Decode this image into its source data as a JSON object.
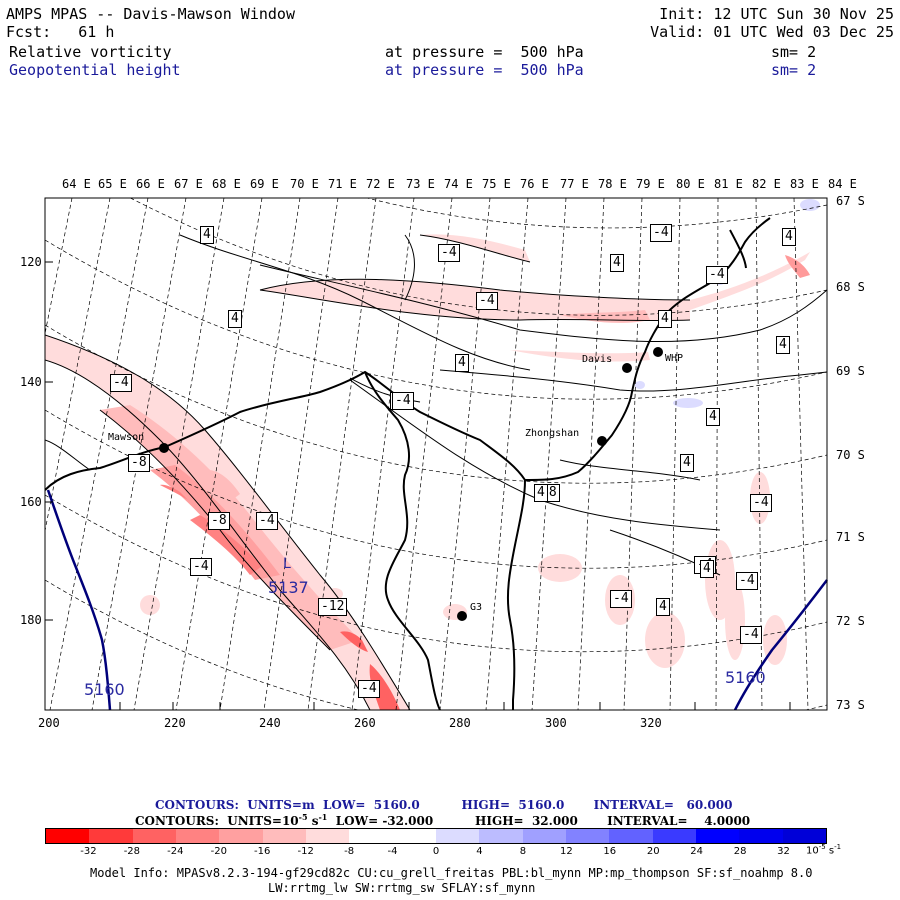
{
  "header": {
    "title": "AMPS MPAS -- Davis-Mawson Window",
    "forecast": "Fcst:   61 h",
    "init": "Init: 12 UTC Sun 30 Nov 25",
    "valid": "Valid: 01 UTC Wed 03 Dec 25",
    "field1": {
      "name": "Relative vorticity",
      "level": "at pressure =  500 hPa",
      "smooth": "sm= 2"
    },
    "field2": {
      "name": "Geopotential height",
      "level": "at pressure =  500 hPa",
      "smooth": "sm= 2"
    }
  },
  "map": {
    "lon_labels": [
      "64 E",
      "65 E",
      "66 E",
      "67 E",
      "68 E",
      "69 E",
      "70 E",
      "71 E",
      "72 E",
      "73 E",
      "74 E",
      "75 E",
      "76 E",
      "77 E",
      "78 E",
      "79 E",
      "80 E",
      "81 E",
      "82 E",
      "83 E",
      "84 E"
    ],
    "lat_labels": [
      "67 S",
      "68 S",
      "69 S",
      "70 S",
      "71 S",
      "72 S",
      "73 S"
    ],
    "x_ticks": [
      "200",
      "220",
      "240",
      "260",
      "280",
      "300",
      "320"
    ],
    "y_ticks": [
      "120",
      "140",
      "160",
      "180"
    ],
    "stations": [
      "Mawson",
      "Davis",
      "WHP",
      "Zhongshan",
      "G3"
    ],
    "height_labels": [
      "5160",
      "5160",
      "5137"
    ],
    "low_marker": "L",
    "vort_labels": [
      "4",
      "4",
      "4",
      "-4",
      "-4",
      "-4",
      "4",
      "-4",
      "4",
      "-4",
      "4",
      "4",
      "-4",
      "4",
      "-8",
      "4",
      "-4",
      "-8",
      "-4",
      "-4",
      "-4",
      "4",
      "-4",
      "-8",
      "-4",
      "-4",
      "-12",
      "4",
      "4",
      "4",
      "-4"
    ]
  },
  "captions": {
    "line1": "CONTOURS:  UNITS=m  LOW=  5160.0          HIGH=  5160.0       INTERVAL=   60.000",
    "line2a": "CONTOURS:  UNITS=10",
    "line2sup": "-5",
    "line2b": " s",
    "line2sup2": "-1",
    "line2c": "  LOW= -32.000          HIGH=  32.000       INTERVAL=    4.0000"
  },
  "colorbar": {
    "colors": [
      "#ff0000",
      "#ff3a3a",
      "#ff6262",
      "#ff8282",
      "#ffa0a0",
      "#ffbcbc",
      "#ffdcdc",
      "#ffffff",
      "#ffffff",
      "#dcdcff",
      "#bcbcff",
      "#a0a0ff",
      "#8282ff",
      "#6262ff",
      "#3a3aff",
      "#0000ff",
      "#0000ee",
      "#0000d8"
    ],
    "labels": [
      "-32",
      "-28",
      "-24",
      "-20",
      "-16",
      "-12",
      "-8",
      "-4",
      "0",
      "4",
      "8",
      "12",
      "16",
      "20",
      "24",
      "28",
      "32"
    ],
    "unit": "10",
    "unit_exp": "-5",
    "unit_s": " s",
    "unit_exp2": "-1"
  },
  "model_info": {
    "line1": "Model Info: MPASv8.2.3-194-gf29cd82c CU:cu_grell_freitas PBL:bl_mynn MP:mp_thompson SF:sf_noahmp 8.0",
    "line2": "LW:rrtmg_lw SW:rrtmg_sw SFLAY:sf_mynn"
  }
}
